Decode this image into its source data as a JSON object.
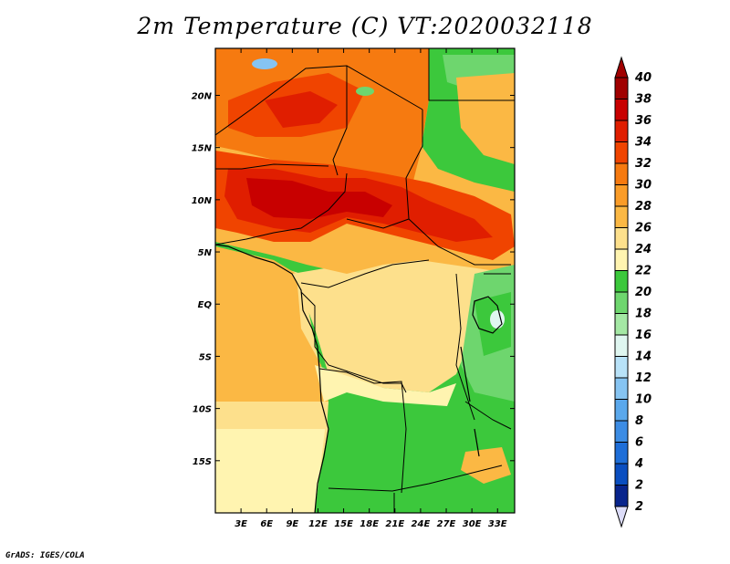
{
  "title": "2m Temperature (C) VT:2020032118",
  "credit": "GrADS: IGES/COLA",
  "map": {
    "lon_range": [
      0,
      35
    ],
    "lat_range": [
      -20,
      24.5
    ],
    "lat_ticks": [
      {
        "value": 20,
        "label": "20N"
      },
      {
        "value": 15,
        "label": "15N"
      },
      {
        "value": 10,
        "label": "10N"
      },
      {
        "value": 5,
        "label": "5N"
      },
      {
        "value": 0,
        "label": "EQ"
      },
      {
        "value": -5,
        "label": "5S"
      },
      {
        "value": -10,
        "label": "10S"
      },
      {
        "value": -15,
        "label": "15S"
      }
    ],
    "lon_ticks": [
      {
        "value": 3,
        "label": "3E"
      },
      {
        "value": 6,
        "label": "6E"
      },
      {
        "value": 9,
        "label": "9E"
      },
      {
        "value": 12,
        "label": "12E"
      },
      {
        "value": 15,
        "label": "15E"
      },
      {
        "value": 18,
        "label": "18E"
      },
      {
        "value": 21,
        "label": "21E"
      },
      {
        "value": 24,
        "label": "24E"
      },
      {
        "value": 27,
        "label": "27E"
      },
      {
        "value": 30,
        "label": "30E"
      },
      {
        "value": 33,
        "label": "33E"
      }
    ]
  },
  "colorbar": {
    "levels": [
      {
        "label": "40",
        "color": "#a00000"
      },
      {
        "label": "38",
        "color": "#c80000"
      },
      {
        "label": "36",
        "color": "#e01e00"
      },
      {
        "label": "34",
        "color": "#f04400"
      },
      {
        "label": "32",
        "color": "#f67a10"
      },
      {
        "label": "30",
        "color": "#fa9c28"
      },
      {
        "label": "28",
        "color": "#fbb844"
      },
      {
        "label": "26",
        "color": "#fde08c"
      },
      {
        "label": "24",
        "color": "#fff4b0"
      },
      {
        "label": "22",
        "color": "#3cc83c"
      },
      {
        "label": "20",
        "color": "#6ed66e"
      },
      {
        "label": "18",
        "color": "#a4e8a4"
      },
      {
        "label": "16",
        "color": "#dff6f0"
      },
      {
        "label": "14",
        "color": "#b8e2f8"
      },
      {
        "label": "12",
        "color": "#86c4f2"
      },
      {
        "label": "10",
        "color": "#5aa8ec"
      },
      {
        "label": "8",
        "color": "#3c8ce4"
      },
      {
        "label": "6",
        "color": "#1e6ed8"
      },
      {
        "label": "4",
        "color": "#0a4ec0"
      },
      {
        "label": "2",
        "color": "#08248c"
      }
    ],
    "top_triangle_color": "#a00000",
    "bottom_triangle_color": "#080c70",
    "bottom_label": "2"
  }
}
